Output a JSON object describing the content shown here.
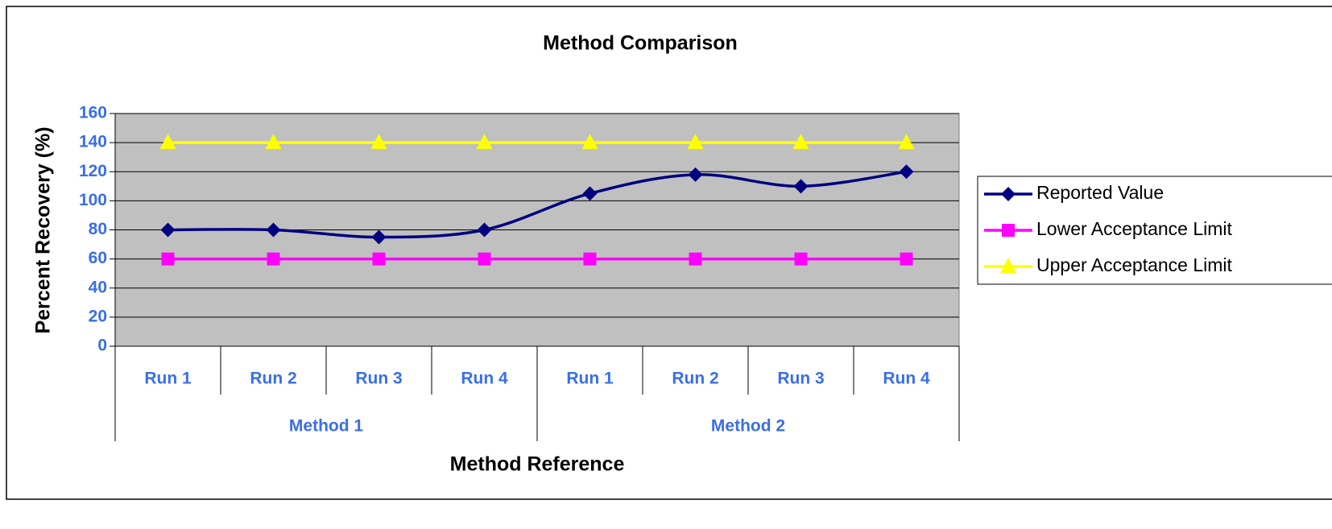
{
  "chart_data": {
    "type": "line",
    "title": "Method Comparison",
    "x_label": "Method Reference",
    "y_label": "Percent Recovery (%)",
    "category_groups": [
      {
        "name": "Method 1",
        "categories": [
          "Run 1",
          "Run 2",
          "Run 3",
          "Run 4"
        ]
      },
      {
        "name": "Method 2",
        "categories": [
          "Run 1",
          "Run 2",
          "Run 3",
          "Run 4"
        ]
      }
    ],
    "series": [
      {
        "name": "Reported Value",
        "color": "#000080",
        "marker": "diamond",
        "smooth": true,
        "values": [
          80,
          80,
          75,
          80,
          105,
          118,
          110,
          120
        ]
      },
      {
        "name": "Lower Acceptance Limit",
        "color": "#ff00ff",
        "marker": "square",
        "smooth": false,
        "values": [
          60,
          60,
          60,
          60,
          60,
          60,
          60,
          60
        ]
      },
      {
        "name": "Upper Acceptance Limit",
        "color": "#ffff00",
        "marker": "triangle",
        "smooth": false,
        "values": [
          140,
          140,
          140,
          140,
          140,
          140,
          140,
          140
        ]
      }
    ],
    "ylim": [
      0,
      160
    ],
    "yticks": [
      0,
      20,
      40,
      60,
      80,
      100,
      120,
      140,
      160
    ],
    "grid": true,
    "plot_background": "#c0c0c0",
    "legend": "right"
  }
}
